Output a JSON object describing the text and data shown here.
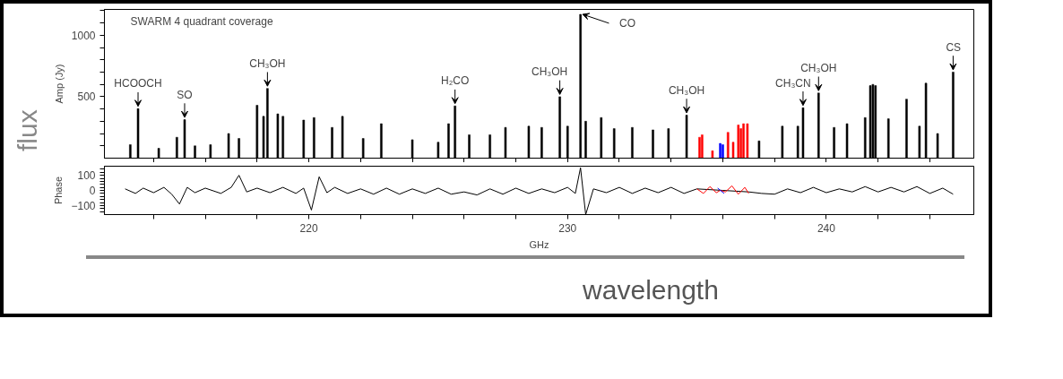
{
  "chart_data": [
    {
      "type": "bar",
      "ylabel": "Amp (Jy)",
      "xlim": [
        212.1,
        245.7
      ],
      "ylim": [
        0,
        1210
      ],
      "xticks": [
        {
          "value": 214,
          "label": null
        },
        {
          "value": 216,
          "label": null
        },
        {
          "value": 218,
          "label": null
        },
        {
          "value": 220,
          "label": null
        },
        {
          "value": 222,
          "label": null
        },
        {
          "value": 224,
          "label": null
        },
        {
          "value": 226,
          "label": null
        },
        {
          "value": 228,
          "label": null
        },
        {
          "value": 230,
          "label": null
        },
        {
          "value": 232,
          "label": null
        },
        {
          "value": 234,
          "label": null
        },
        {
          "value": 236,
          "label": null
        },
        {
          "value": 238,
          "label": null
        },
        {
          "value": 240,
          "label": null
        },
        {
          "value": 242,
          "label": null
        },
        {
          "value": 244,
          "label": null
        }
      ],
      "yticks": [
        {
          "value": 100,
          "label": null
        },
        {
          "value": 200,
          "label": null
        },
        {
          "value": 300,
          "label": null
        },
        {
          "value": 400,
          "label": null
        },
        500,
        {
          "value": 600,
          "label": null
        },
        {
          "value": 700,
          "label": null
        },
        {
          "value": 800,
          "label": null
        },
        {
          "value": 900,
          "label": null
        },
        1000,
        {
          "value": 1100,
          "label": null
        },
        {
          "value": 1200,
          "label": null
        }
      ],
      "tick_labels": "y",
      "grid": false,
      "series": [
        {
          "color": "#000000",
          "x": [
            213.1,
            213.4,
            214.2,
            214.9,
            215.2,
            215.6,
            216.2,
            216.9,
            217.3,
            218.0,
            218.25,
            218.4,
            218.8,
            219.0,
            219.8,
            220.2,
            220.9,
            221.3,
            222.1,
            222.8,
            224.0,
            225.0,
            225.4,
            225.65,
            226.2,
            227.0,
            227.6,
            228.5,
            229.0,
            229.7,
            230.0,
            230.5,
            230.7,
            231.3,
            231.8,
            232.5,
            233.3,
            233.9,
            234.6,
            237.4,
            238.3,
            238.9,
            239.1,
            239.7,
            240.3,
            240.8,
            241.5,
            241.7,
            241.8,
            241.9,
            242.4,
            243.1,
            243.6,
            243.85,
            244.3,
            244.9
          ],
          "values": [
            110,
            403,
            80,
            170,
            313,
            100,
            110,
            200,
            160,
            430,
            340,
            567,
            360,
            340,
            310,
            330,
            250,
            340,
            160,
            280,
            150,
            130,
            280,
            425,
            190,
            190,
            250,
            260,
            250,
            500,
            260,
            1170,
            300,
            330,
            240,
            250,
            230,
            240,
            350,
            140,
            260,
            260,
            410,
            530,
            250,
            280,
            330,
            590,
            600,
            590,
            320,
            480,
            260,
            610,
            200,
            700
          ]
        },
        {
          "color": "#ff0000",
          "x": [
            235.1,
            235.2,
            235.6,
            236.2,
            236.4,
            236.6,
            236.7,
            236.8,
            236.95
          ],
          "values": [
            170,
            190,
            60,
            210,
            130,
            270,
            240,
            280,
            280
          ]
        },
        {
          "color": "#0000ff",
          "x": [
            235.9,
            236.0
          ],
          "values": [
            120,
            110
          ]
        }
      ],
      "annotations": [
        "SWARM 4 quadrant coverage",
        {
          "text": "HCOOCH",
          "x": 213.4,
          "y": 403
        },
        {
          "text": "SO",
          "x": 215.2,
          "y": 313
        },
        {
          "text": "CH₃OH",
          "x": 218.4,
          "y": 567
        },
        {
          "text": "H₂CO",
          "x": 225.65,
          "y": 425
        },
        {
          "text": "CH₃OH",
          "x": 229.7,
          "y": 500
        },
        {
          "text": "CO",
          "x": 230.5,
          "y": 1170
        },
        {
          "text": "CH₃OH",
          "x": 234.6,
          "y": 350
        },
        {
          "text": "CH₃CN",
          "x": 239.1,
          "y": 410
        },
        {
          "text": "CH₃OH",
          "x": 239.7,
          "y": 530
        },
        {
          "text": "CS",
          "x": 244.9,
          "y": 700
        }
      ]
    },
    {
      "type": "line",
      "ylabel": "Phase",
      "xlabel": "GHz",
      "xlim": [
        212.1,
        245.7
      ],
      "ylim": [
        -160,
        160
      ],
      "xticks": [
        {
          "value": 214,
          "label": null
        },
        {
          "value": 216,
          "label": null
        },
        {
          "value": 218,
          "label": null
        },
        220,
        {
          "value": 222,
          "label": null
        },
        {
          "value": 224,
          "label": null
        },
        {
          "value": 226,
          "label": null
        },
        {
          "value": 228,
          "label": null
        },
        230,
        {
          "value": 232,
          "label": null
        },
        {
          "value": 234,
          "label": null
        },
        {
          "value": 236,
          "label": null
        },
        {
          "value": 238,
          "label": null
        },
        240,
        {
          "value": 242,
          "label": null
        },
        {
          "value": 244,
          "label": null
        }
      ],
      "yticks": [
        {
          "value": -140,
          "label": null
        },
        {
          "value": -120,
          "label": null
        },
        {
          "value": -100,
          "label": "−100"
        },
        {
          "value": -80,
          "label": null
        },
        {
          "value": -60,
          "label": null
        },
        {
          "value": -40,
          "label": null
        },
        {
          "value": -20,
          "label": null
        },
        0,
        {
          "value": 20,
          "label": null
        },
        {
          "value": 40,
          "label": null
        },
        {
          "value": 60,
          "label": null
        },
        {
          "value": 80,
          "label": null
        },
        100,
        {
          "value": 120,
          "label": null
        },
        {
          "value": 140,
          "label": null
        }
      ],
      "grid": false,
      "marker": "none",
      "line_style": "solid",
      "series": [
        {
          "color": "#000000",
          "x": [
            212.9,
            213.3,
            213.6,
            214.0,
            214.4,
            214.7,
            215.0,
            215.3,
            215.6,
            216.0,
            216.6,
            217.0,
            217.3,
            217.6,
            218.0,
            218.5,
            219.0,
            219.5,
            219.8,
            220.1,
            220.4,
            220.7,
            221.0,
            221.5,
            222.0,
            222.5,
            223.0,
            223.5,
            224.0,
            224.5,
            225.0,
            225.5,
            226.0,
            226.5,
            227.0,
            227.5,
            228.0,
            228.5,
            229.0,
            229.5,
            230.0,
            230.3,
            230.5,
            230.7,
            231.0,
            231.5,
            232.0,
            232.5,
            233.0,
            233.5,
            234.0,
            234.5,
            235.0,
            236.0,
            237.0,
            237.5,
            238.0,
            238.5,
            239.0,
            239.5,
            240.0,
            240.5,
            241.0,
            241.5,
            242.0,
            242.5,
            243.0,
            243.5,
            244.0,
            244.5,
            244.9
          ],
          "values": [
            10,
            -20,
            15,
            -15,
            20,
            -25,
            -90,
            20,
            -15,
            15,
            -20,
            20,
            100,
            -10,
            15,
            -15,
            20,
            -20,
            15,
            -130,
            90,
            -15,
            20,
            -20,
            10,
            -25,
            15,
            -25,
            10,
            -20,
            15,
            -25,
            -10,
            -30,
            10,
            -25,
            15,
            -20,
            10,
            -15,
            20,
            -20,
            150,
            -160,
            10,
            -15,
            20,
            -20,
            15,
            -15,
            20,
            -20,
            10,
            null,
            -10,
            -20,
            -25,
            10,
            -15,
            20,
            -15,
            10,
            -10,
            25,
            -10,
            20,
            -10,
            25,
            -20,
            15,
            -25
          ]
        },
        {
          "color": "#ff0000",
          "x": [
            235.0,
            235.25,
            235.5,
            235.75,
            235.9,
            236.1,
            236.35,
            236.6,
            236.85,
            237.0
          ],
          "values": [
            10,
            -20,
            25,
            -15,
            null,
            -10,
            30,
            -25,
            20,
            -20
          ]
        },
        {
          "color": "#0000ff",
          "x": [
            235.8,
            236.05
          ],
          "values": [
            15,
            -20
          ]
        }
      ]
    },
    {
      "type": "other",
      "ylabel": "flux",
      "xlabel": "wavelength"
    }
  ]
}
